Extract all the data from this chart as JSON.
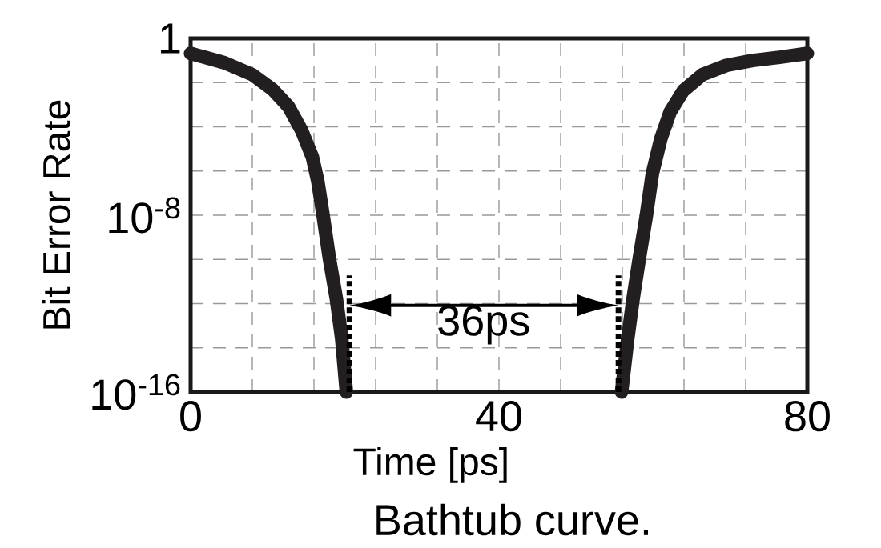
{
  "chart_data": {
    "type": "line",
    "xlabel": "Time [ps]",
    "ylabel": "Bit Error Rate",
    "log": "y",
    "xlim": [
      0,
      80
    ],
    "ylim": [
      1e-16,
      1
    ],
    "xticks": [
      0,
      {
        "value": 8,
        "label": null
      },
      {
        "value": 16,
        "label": null
      },
      {
        "value": 24,
        "label": null
      },
      {
        "value": 32,
        "label": null
      },
      40,
      {
        "value": 48,
        "label": null
      },
      {
        "value": 56,
        "label": null
      },
      {
        "value": 64,
        "label": null
      },
      {
        "value": 72,
        "label": null
      },
      80
    ],
    "yticks": [
      {
        "value": 1e-16,
        "label": "10$^{-16}$"
      },
      {
        "value": 1e-14,
        "label": null
      },
      {
        "value": 1e-12,
        "label": null
      },
      {
        "value": 1e-10,
        "label": null
      },
      {
        "value": 1e-08,
        "label": "10$^{-8}$"
      },
      {
        "value": 1e-06,
        "label": null
      },
      {
        "value": 0.0001,
        "label": null
      },
      {
        "value": 0.01,
        "label": null
      },
      1
    ],
    "grid": true,
    "marker": "none",
    "line_style": "solid",
    "series": [
      {
        "color": "#231f20",
        "x": [
          0,
          4.4,
          8.0,
          10.6,
          12.7,
          14.4,
          15.8,
          16.5,
          17.2,
          18.0,
          18.9,
          19.6,
          20.2
        ],
        "values": [
          0.21,
          0.079,
          0.023,
          0.005,
          0.00081,
          6.8e-05,
          4.2e-06,
          3.4e-07,
          9e-09,
          1.1e-10,
          1.7e-12,
          2.6e-14,
          1e-16
        ]
      },
      {
        "color": "#231f20",
        "x": [
          55.9,
          56.7,
          57.4,
          58.2,
          59.1,
          59.9,
          61.0,
          62.2,
          63.9,
          66.4,
          69.5,
          72.9,
          76.4,
          80
        ],
        "values": [
          1e-16,
          2.6e-14,
          1.7e-12,
          1.1e-10,
          9e-09,
          7.8e-07,
          2.9e-05,
          0.00047,
          0.0043,
          0.023,
          0.06,
          0.1,
          0.14,
          0.21
        ]
      }
    ],
    "ref_lines": [
      {
        "axis": "x",
        "value": 20.6,
        "line_style": "dotted"
      },
      {
        "axis": "x",
        "value": 55.5,
        "line_style": "dotted"
      }
    ],
    "annotations": [
      "36ps",
      "Bathtub curve."
    ]
  }
}
